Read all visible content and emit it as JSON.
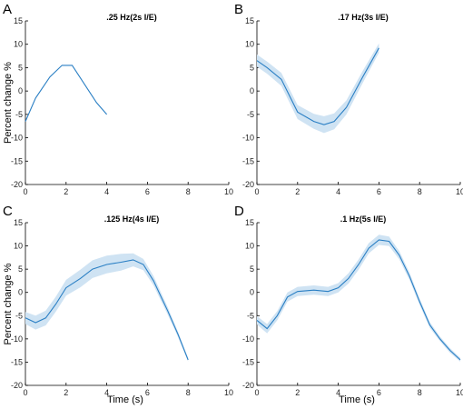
{
  "chart_data": [
    {
      "type": "line",
      "panel_label": "A",
      "title": ".25 Hz(2s I/E)",
      "ylabel": "Percent change %",
      "xlabel": "",
      "xlim": [
        0,
        10
      ],
      "ylim": [
        -20,
        15
      ],
      "xticks": [
        "0",
        "2",
        "4",
        "6",
        "8",
        "10"
      ],
      "yticks": [
        "15",
        "10",
        "5",
        "0",
        "-5",
        "-10",
        "-15",
        "-20"
      ],
      "band": false,
      "colors": {
        "line": "#2a7fc4",
        "band": "#cfe3f3"
      },
      "series": [
        {
          "x": [
            0,
            0.5,
            1.2,
            1.8,
            2.3,
            3.5,
            4.0
          ],
          "y": [
            -6.5,
            -1.5,
            3.0,
            5.5,
            5.5,
            -2.5,
            -5.0
          ],
          "err": [
            0,
            0,
            0,
            0,
            0,
            0,
            0
          ]
        }
      ]
    },
    {
      "type": "line",
      "panel_label": "B",
      "title": ".17 Hz(3s I/E)",
      "ylabel": "",
      "xlabel": "",
      "xlim": [
        0,
        10
      ],
      "ylim": [
        -20,
        15
      ],
      "xticks": [
        "0",
        "2",
        "4",
        "6",
        "8",
        "10"
      ],
      "yticks": [
        "15",
        "10",
        "5",
        "0",
        "-5",
        "-10",
        "-15",
        "-20"
      ],
      "band": true,
      "colors": {
        "line": "#2a7fc4",
        "band": "#cfe3f3"
      },
      "series": [
        {
          "x": [
            0,
            0.5,
            1.2,
            2.0,
            2.8,
            3.3,
            3.8,
            4.4,
            5.2,
            6.0
          ],
          "y": [
            6.5,
            5.0,
            2.5,
            -4.5,
            -6.5,
            -7.2,
            -6.5,
            -3.5,
            3.0,
            9.2
          ],
          "err": [
            1.3,
            1.3,
            1.4,
            1.5,
            1.6,
            1.8,
            1.7,
            1.5,
            1.3,
            1.0
          ]
        }
      ]
    },
    {
      "type": "line",
      "panel_label": "C",
      "title": ".125 Hz(4s I/E)",
      "ylabel": "Percent change %",
      "xlabel": "Time (s)",
      "xlim": [
        0,
        10
      ],
      "ylim": [
        -20,
        15
      ],
      "xticks": [
        "0",
        "2",
        "4",
        "6",
        "8",
        "10"
      ],
      "yticks": [
        "15",
        "10",
        "5",
        "0",
        "-5",
        "-10",
        "-15",
        "-20"
      ],
      "band": true,
      "colors": {
        "line": "#2a7fc4",
        "band": "#cfe3f3"
      },
      "series": [
        {
          "x": [
            0,
            0.5,
            1.0,
            1.5,
            2.0,
            2.7,
            3.3,
            4.0,
            4.7,
            5.3,
            5.8,
            6.3,
            7.0,
            7.5,
            8.0
          ],
          "y": [
            -5.5,
            -6.5,
            -5.5,
            -2.5,
            1.0,
            3.0,
            5.0,
            6.0,
            6.5,
            7.0,
            6.0,
            2.5,
            -4.0,
            -9.0,
            -14.5
          ],
          "err": [
            1.3,
            1.5,
            1.6,
            1.6,
            1.7,
            1.9,
            1.9,
            1.9,
            1.8,
            1.4,
            1.2,
            1.0,
            0.8,
            0.6,
            0.4
          ]
        }
      ]
    },
    {
      "type": "line",
      "panel_label": "D",
      "title": ".1 Hz(5s I/E)",
      "ylabel": "",
      "xlabel": "Time (s)",
      "xlim": [
        0,
        10
      ],
      "ylim": [
        -20,
        15
      ],
      "xticks": [
        "0",
        "2",
        "4",
        "6",
        "8",
        "10"
      ],
      "yticks": [
        "15",
        "10",
        "5",
        "0",
        "-5",
        "-10",
        "-15",
        "-20"
      ],
      "band": true,
      "colors": {
        "line": "#2a7fc4",
        "band": "#cfe3f3"
      },
      "series": [
        {
          "x": [
            0,
            0.5,
            1.0,
            1.5,
            2.0,
            2.8,
            3.5,
            4.0,
            4.5,
            5.0,
            5.5,
            6.0,
            6.5,
            7.0,
            7.5,
            8.0,
            8.5,
            9.0,
            9.5,
            10.0
          ],
          "y": [
            -6.0,
            -7.8,
            -5.0,
            -1.0,
            0.2,
            0.5,
            0.2,
            1.0,
            3.0,
            6.0,
            9.5,
            11.3,
            11.0,
            8.0,
            3.5,
            -2.0,
            -7.0,
            -10.0,
            -12.5,
            -14.5
          ],
          "err": [
            0.9,
            1.0,
            1.0,
            1.0,
            1.0,
            1.0,
            1.0,
            1.0,
            1.1,
            1.1,
            1.1,
            1.1,
            1.0,
            0.9,
            0.8,
            0.7,
            0.6,
            0.5,
            0.5,
            0.4
          ]
        }
      ]
    }
  ]
}
